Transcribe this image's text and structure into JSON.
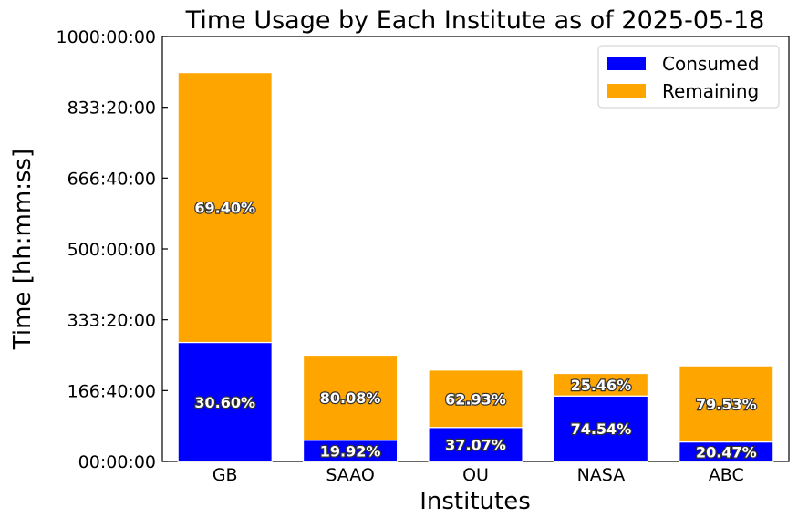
{
  "chart_data": {
    "type": "bar",
    "stacked": true,
    "title": "Time Usage by Each Institute as of 2025-05-18",
    "xlabel": "Institutes",
    "ylabel": "Time [hh:mm:ss]",
    "ylim_hours": [
      0,
      1000
    ],
    "yticks_hours": [
      0,
      166.6667,
      333.3333,
      500,
      666.6667,
      833.3333,
      1000
    ],
    "ytick_labels": [
      "00:00:00",
      "166:40:00",
      "333:20:00",
      "500:00:00",
      "666:40:00",
      "833:20:00",
      "1000:00:00"
    ],
    "categories": [
      "GB",
      "SAAO",
      "OU",
      "NASA",
      "ABC"
    ],
    "series": [
      {
        "name": "Consumed",
        "color": "#0000ff",
        "values_hours": [
          280,
          50,
          80,
          154,
          46
        ],
        "percent_labels": [
          "30.60%",
          "19.92%",
          "37.07%",
          "74.54%",
          "20.47%"
        ]
      },
      {
        "name": "Remaining",
        "color": "#ffa500",
        "values_hours": [
          635,
          200,
          135,
          53,
          179
        ],
        "percent_labels": [
          "69.40%",
          "80.08%",
          "62.93%",
          "25.46%",
          "79.53%"
        ]
      }
    ],
    "legend_position": "top-right",
    "grid": false
  }
}
